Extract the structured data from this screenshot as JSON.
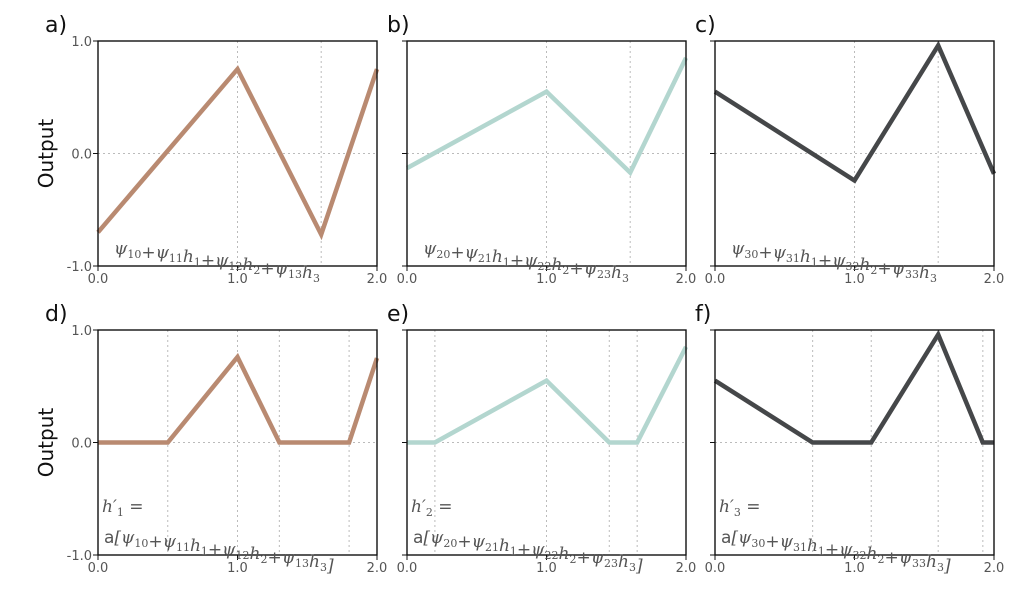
{
  "chart_data": [
    {
      "type": "line",
      "panel": "a)",
      "ylabel": "Output",
      "x": [
        0.0,
        1.0,
        1.6,
        2.0
      ],
      "y": [
        -0.7,
        0.75,
        -0.72,
        0.75
      ],
      "xlim": [
        0.0,
        2.0
      ],
      "ylim": [
        -1.0,
        1.0
      ],
      "xticks": [
        "0.0",
        "1.0",
        "2.0"
      ],
      "yticks": [
        "1.0",
        "0.0",
        "-1.0"
      ],
      "color": "#b98a71",
      "formula": [
        [
          "ψ",
          "10"
        ],
        [
          "+ψ",
          "11"
        ],
        [
          "h",
          "1"
        ],
        [
          "+ψ",
          "12"
        ],
        [
          "h",
          "2"
        ],
        [
          "+ψ",
          "13"
        ],
        [
          "h",
          "3"
        ]
      ]
    },
    {
      "type": "line",
      "panel": "b)",
      "ylabel": "",
      "x": [
        0.0,
        1.0,
        1.6,
        2.0
      ],
      "y": [
        -0.13,
        0.55,
        -0.17,
        0.85
      ],
      "xlim": [
        0.0,
        2.0
      ],
      "ylim": [
        -1.0,
        1.0
      ],
      "xticks": [
        "0.0",
        "1.0",
        "2.0"
      ],
      "yticks": [],
      "color": "#b3d6cf",
      "formula": [
        [
          "ψ",
          "20"
        ],
        [
          "+ψ",
          "21"
        ],
        [
          "h",
          "1"
        ],
        [
          "+ψ",
          "22"
        ],
        [
          "h",
          "2"
        ],
        [
          "+ψ",
          "23"
        ],
        [
          "h",
          "3"
        ]
      ]
    },
    {
      "type": "line",
      "panel": "c)",
      "ylabel": "",
      "x": [
        0.0,
        1.0,
        1.6,
        2.0
      ],
      "y": [
        0.55,
        -0.24,
        0.96,
        -0.18
      ],
      "xlim": [
        0.0,
        2.0
      ],
      "ylim": [
        -1.0,
        1.0
      ],
      "xticks": [
        "0.0",
        "1.0",
        "2.0"
      ],
      "yticks": [],
      "color": "#454749",
      "formula": [
        [
          "ψ",
          "30"
        ],
        [
          "+ψ",
          "31"
        ],
        [
          "h",
          "1"
        ],
        [
          "+ψ",
          "32"
        ],
        [
          "h",
          "2"
        ],
        [
          "+ψ",
          "33"
        ],
        [
          "h",
          "3"
        ]
      ]
    },
    {
      "type": "line",
      "panel": "d)",
      "ylabel": "Output",
      "x": [
        0.0,
        0.5,
        1.0,
        1.3,
        1.8,
        2.0
      ],
      "y": [
        0.0,
        0.0,
        0.76,
        0.0,
        0.0,
        0.75
      ],
      "xlim": [
        0.0,
        2.0
      ],
      "ylim": [
        -1.0,
        1.0
      ],
      "xticks": [
        "0.0",
        "1.0",
        "2.0"
      ],
      "yticks": [
        "1.0",
        "0.0",
        "-1.0"
      ],
      "color": "#b98a71",
      "formula_line1": "h′",
      "formula_line1_sub": "1",
      "formula_line1_eq": "=",
      "formula_prefix": "a",
      "formula": [
        [
          "[ψ",
          "10"
        ],
        [
          "+ψ",
          "11"
        ],
        [
          "h",
          "1"
        ],
        [
          "+ψ",
          "12"
        ],
        [
          "h",
          "2"
        ],
        [
          "+ψ",
          "13"
        ],
        [
          "h",
          "3"
        ],
        [
          "]",
          ""
        ]
      ]
    },
    {
      "type": "line",
      "panel": "e)",
      "ylabel": "",
      "x": [
        0.0,
        0.2,
        1.0,
        1.45,
        1.65,
        2.0
      ],
      "y": [
        0.0,
        0.0,
        0.55,
        0.0,
        0.0,
        0.85
      ],
      "xlim": [
        0.0,
        2.0
      ],
      "ylim": [
        -1.0,
        1.0
      ],
      "xticks": [
        "0.0",
        "1.0",
        "2.0"
      ],
      "yticks": [],
      "color": "#b3d6cf",
      "formula_line1": "h′",
      "formula_line1_sub": "2",
      "formula_line1_eq": "=",
      "formula_prefix": "a",
      "formula": [
        [
          "[ψ",
          "20"
        ],
        [
          "+ψ",
          "21"
        ],
        [
          "h",
          "1"
        ],
        [
          "+ψ",
          "22"
        ],
        [
          "h",
          "2"
        ],
        [
          "+ψ",
          "23"
        ],
        [
          "h",
          "3"
        ],
        [
          "]",
          ""
        ]
      ]
    },
    {
      "type": "line",
      "panel": "f)",
      "ylabel": "",
      "x": [
        0.0,
        0.7,
        1.12,
        1.6,
        1.92,
        2.0
      ],
      "y": [
        0.55,
        0.0,
        0.0,
        0.96,
        0.0,
        0.0
      ],
      "xlim": [
        0.0,
        2.0
      ],
      "ylim": [
        -1.0,
        1.0
      ],
      "xticks": [
        "0.0",
        "1.0",
        "2.0"
      ],
      "yticks": [],
      "color": "#454749",
      "formula_line1": "h′",
      "formula_line1_sub": "3",
      "formula_line1_eq": "=",
      "formula_prefix": "a",
      "formula": [
        [
          "[ψ",
          "30"
        ],
        [
          "+ψ",
          "31"
        ],
        [
          "h",
          "1"
        ],
        [
          "+ψ",
          "32"
        ],
        [
          "h",
          "2"
        ],
        [
          "+ψ",
          "33"
        ],
        [
          "h",
          "3"
        ],
        [
          "]",
          ""
        ]
      ]
    }
  ]
}
